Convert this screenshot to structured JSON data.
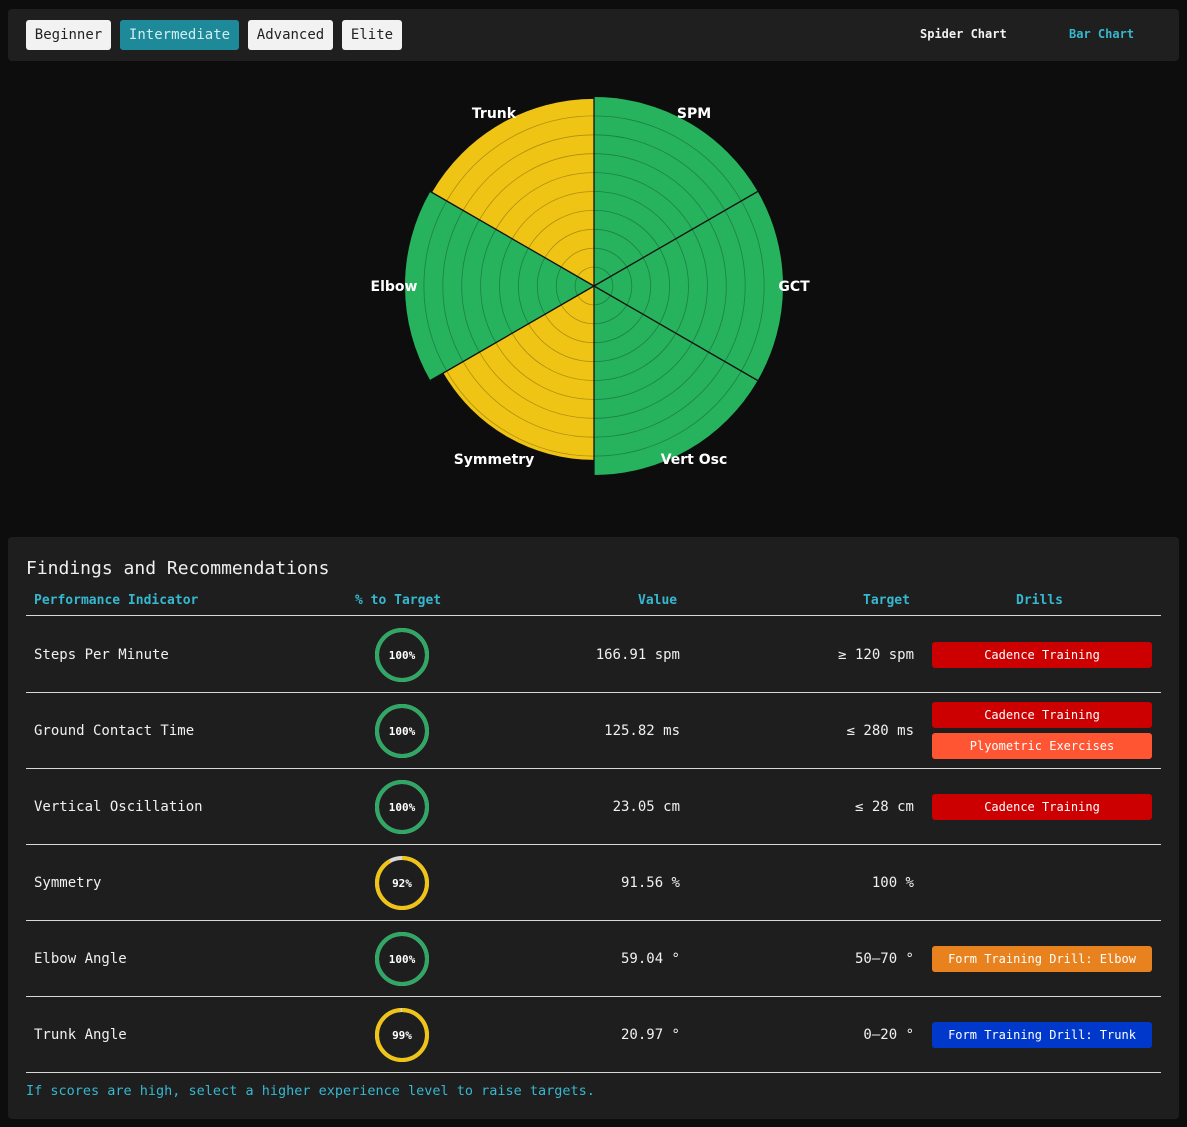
{
  "levels": [
    {
      "label": "Beginner",
      "active": false
    },
    {
      "label": "Intermediate",
      "active": true
    },
    {
      "label": "Advanced",
      "active": false
    },
    {
      "label": "Elite",
      "active": false
    }
  ],
  "views": {
    "spider": "Spider Chart",
    "bar": "Bar Chart"
  },
  "chart_data": {
    "type": "polar-area",
    "axes": [
      "SPM",
      "GCT",
      "Vert Osc",
      "Symmetry",
      "Elbow",
      "Trunk"
    ],
    "values": [
      100,
      100,
      100,
      92,
      100,
      99
    ],
    "colors": [
      "#27b25e",
      "#27b25e",
      "#27b25e",
      "#f0c414",
      "#27b25e",
      "#f0c414"
    ],
    "rmax": 100,
    "grid_rings": 10,
    "grid": true,
    "legend": "none"
  },
  "findings": {
    "title": "Findings and Recommendations",
    "headers": {
      "indicator": "Performance Indicator",
      "pct": "% to Target",
      "value": "Value",
      "target": "Target",
      "drills": "Drills"
    },
    "rows": [
      {
        "name": "Steps Per Minute",
        "pct": 100,
        "pct_label": "100%",
        "value": "166.91 spm",
        "target": "≥ 120 spm",
        "drills": [
          {
            "label": "Cadence Training",
            "color": "#cc0000"
          }
        ]
      },
      {
        "name": "Ground Contact Time",
        "pct": 100,
        "pct_label": "100%",
        "value": "125.82 ms",
        "target": "≤ 280 ms",
        "drills": [
          {
            "label": "Cadence Training",
            "color": "#cc0000"
          },
          {
            "label": "Plyometric Exercises",
            "color": "#ff5533"
          }
        ]
      },
      {
        "name": "Vertical Oscillation",
        "pct": 100,
        "pct_label": "100%",
        "value": "23.05 cm",
        "target": "≤ 28 cm",
        "drills": [
          {
            "label": "Cadence Training",
            "color": "#cc0000"
          }
        ]
      },
      {
        "name": "Symmetry",
        "pct": 92,
        "pct_label": "92%",
        "value": "91.56 %",
        "target": "100 %",
        "drills": []
      },
      {
        "name": "Elbow Angle",
        "pct": 100,
        "pct_label": "100%",
        "value": "59.04 °",
        "target": "50–70 °",
        "drills": [
          {
            "label": "Form Training Drill: Elbow",
            "color": "#e8821e"
          }
        ]
      },
      {
        "name": "Trunk Angle",
        "pct": 99,
        "pct_label": "99%",
        "value": "20.97 °",
        "target": "0–20 °",
        "drills": [
          {
            "label": "Form Training Drill: Trunk",
            "color": "#0038cc"
          }
        ]
      }
    ],
    "ring_colors": {
      "full": "#2fa866",
      "partial": "#f0c414",
      "track": "#d8d8d8"
    },
    "footnote": "If scores are high, select a higher experience level to raise targets."
  }
}
